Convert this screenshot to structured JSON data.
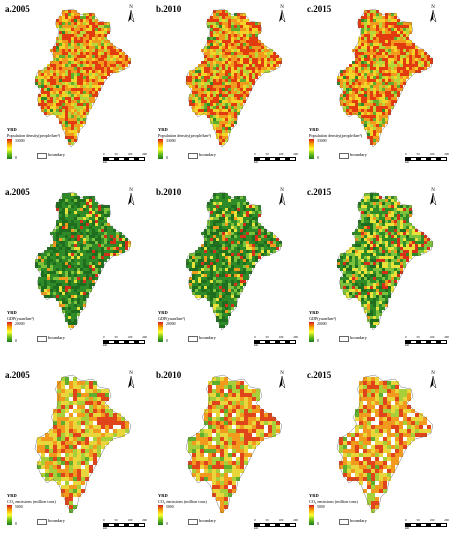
{
  "rows": [
    {
      "legend_title": "YRD",
      "legend_subtitle": "Population density(people/km²)",
      "ramp_max": "33000",
      "ramp_min": "0",
      "ramp_colors": [
        "#d7191c",
        "#f7a400",
        "#ffff33",
        "#6ec21a",
        "#1a7a1a"
      ],
      "boundary_label": "boundary",
      "scale_ticks": [
        "0",
        "50",
        "100",
        "200"
      ],
      "scale_unit": "km",
      "panels": [
        {
          "title": "a.2005",
          "palette": [
            "#e23b10",
            "#f29a1e",
            "#f5d42a",
            "#b7d63a",
            "#5fae2e",
            "#2f8a28"
          ],
          "weights": [
            0.22,
            0.28,
            0.2,
            0.15,
            0.1,
            0.05
          ]
        },
        {
          "title": "b.2010",
          "palette": [
            "#e23b10",
            "#f29a1e",
            "#f5d42a",
            "#b7d63a",
            "#5fae2e",
            "#2f8a28"
          ],
          "weights": [
            0.26,
            0.27,
            0.19,
            0.14,
            0.09,
            0.05
          ]
        },
        {
          "title": "c.2015",
          "palette": [
            "#e23b10",
            "#f29a1e",
            "#f5d42a",
            "#b7d63a",
            "#5fae2e",
            "#2f8a28"
          ],
          "weights": [
            0.3,
            0.26,
            0.18,
            0.13,
            0.08,
            0.05
          ]
        }
      ]
    },
    {
      "legend_title": "YRD",
      "legend_subtitle": "GDP(yuan/km²)",
      "ramp_max": "20000",
      "ramp_min": "0",
      "ramp_colors": [
        "#d7191c",
        "#f7a400",
        "#ffff33",
        "#6ec21a",
        "#1a7a1a"
      ],
      "boundary_label": "boundary",
      "scale_ticks": [
        "0",
        "50",
        "100",
        "200"
      ],
      "scale_unit": "km",
      "panels": [
        {
          "title": "a.2005",
          "palette": [
            "#d7301a",
            "#f29a1e",
            "#e8e23a",
            "#7cc23a",
            "#2f8a28",
            "#1f6e1f"
          ],
          "weights": [
            0.02,
            0.04,
            0.06,
            0.12,
            0.4,
            0.36
          ]
        },
        {
          "title": "b.2010",
          "palette": [
            "#d7301a",
            "#f29a1e",
            "#e8e23a",
            "#7cc23a",
            "#2f8a28",
            "#1f6e1f"
          ],
          "weights": [
            0.03,
            0.05,
            0.09,
            0.16,
            0.37,
            0.3
          ]
        },
        {
          "title": "c.2015",
          "palette": [
            "#d7301a",
            "#f29a1e",
            "#e8e23a",
            "#7cc23a",
            "#2f8a28",
            "#1f6e1f"
          ],
          "weights": [
            0.05,
            0.08,
            0.2,
            0.27,
            0.25,
            0.15
          ]
        }
      ]
    },
    {
      "legend_title": "YRD",
      "legend_subtitle": "CO₂ emissions (million tons)",
      "ramp_max": "5000",
      "ramp_min": "0",
      "ramp_colors": [
        "#d7191c",
        "#f7a400",
        "#ffff33",
        "#6ec21a",
        "#1a7a1a"
      ],
      "boundary_label": "boundary",
      "scale_ticks": [
        "0",
        "50",
        "100",
        "200"
      ],
      "scale_unit": "km",
      "panels": [
        {
          "title": "a.2005",
          "palette": [
            "#e0441a",
            "#f29a1e",
            "#e8d63a",
            "#a6cf3a",
            "#5fae2e"
          ],
          "weights": [
            0.15,
            0.28,
            0.27,
            0.2,
            0.1
          ]
        },
        {
          "title": "b.2010",
          "palette": [
            "#e0441a",
            "#f29a1e",
            "#e8d63a",
            "#a6cf3a",
            "#5fae2e"
          ],
          "weights": [
            0.2,
            0.29,
            0.25,
            0.17,
            0.09
          ]
        },
        {
          "title": "c.2015",
          "palette": [
            "#e0441a",
            "#f29a1e",
            "#e8d63a",
            "#a6cf3a",
            "#5fae2e"
          ],
          "weights": [
            0.22,
            0.3,
            0.24,
            0.16,
            0.08
          ]
        }
      ]
    }
  ]
}
